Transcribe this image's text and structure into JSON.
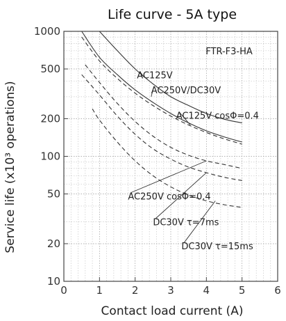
{
  "chart_data": {
    "type": "line",
    "title": "Life curve - 5A type",
    "model_label": "FTR-F3-HA",
    "xlabel": "Contact load current (A)",
    "ylabel": "Service life (x10³ operations)",
    "xlim": [
      0,
      6
    ],
    "ylim": [
      10,
      1000
    ],
    "yscale": "log",
    "grid": "dotted",
    "x_ticks": [
      0,
      1,
      2,
      3,
      4,
      5,
      6
    ],
    "x_tick_labels": [
      "0",
      "1",
      "2",
      "3",
      "4",
      "5",
      "6"
    ],
    "y_ticks": [
      10,
      20,
      50,
      100,
      200,
      500,
      1000
    ],
    "y_tick_labels": [
      "10",
      "20",
      "50",
      "100",
      "200",
      "500",
      "1000"
    ],
    "series": [
      {
        "name": "AC125V",
        "style": "solid",
        "points": [
          [
            1.0,
            1000
          ],
          [
            1.5,
            700
          ],
          [
            2.0,
            500
          ],
          [
            2.5,
            380
          ],
          [
            3.0,
            300
          ],
          [
            3.5,
            255
          ],
          [
            4.0,
            220
          ],
          [
            4.5,
            198
          ],
          [
            5.0,
            185
          ]
        ]
      },
      {
        "name": "AC250V/DC30V",
        "style": "solid",
        "points": [
          [
            0.5,
            1000
          ],
          [
            1.0,
            620
          ],
          [
            1.5,
            450
          ],
          [
            2.0,
            340
          ],
          [
            2.5,
            270
          ],
          [
            3.0,
            220
          ],
          [
            3.5,
            185
          ],
          [
            4.0,
            160
          ],
          [
            4.5,
            143
          ],
          [
            5.0,
            130
          ]
        ]
      },
      {
        "name": "AC125V cosΦ=0.4",
        "style": "dashed",
        "points": [
          [
            0.5,
            900
          ],
          [
            1.0,
            580
          ],
          [
            1.5,
            420
          ],
          [
            2.0,
            320
          ],
          [
            2.5,
            255
          ],
          [
            3.0,
            210
          ],
          [
            3.5,
            178
          ],
          [
            4.0,
            155
          ],
          [
            4.5,
            138
          ],
          [
            5.0,
            125
          ]
        ]
      },
      {
        "name": "AC250V cosΦ=0.4",
        "style": "dashed",
        "points": [
          [
            0.6,
            540
          ],
          [
            1.0,
            390
          ],
          [
            1.5,
            265
          ],
          [
            2.0,
            190
          ],
          [
            2.5,
            145
          ],
          [
            3.0,
            118
          ],
          [
            3.5,
            102
          ],
          [
            4.0,
            92
          ],
          [
            4.5,
            86
          ],
          [
            5.0,
            80
          ]
        ]
      },
      {
        "name": "DC30V τ=7ms",
        "style": "dashed",
        "points": [
          [
            0.5,
            450
          ],
          [
            1.0,
            310
          ],
          [
            1.5,
            210
          ],
          [
            2.0,
            150
          ],
          [
            2.5,
            115
          ],
          [
            3.0,
            95
          ],
          [
            3.5,
            82
          ],
          [
            4.0,
            74
          ],
          [
            4.5,
            68
          ],
          [
            5.0,
            64
          ]
        ]
      },
      {
        "name": "DC30V τ=15ms",
        "style": "dashed",
        "points": [
          [
            0.8,
            240
          ],
          [
            1.0,
            195
          ],
          [
            1.5,
            130
          ],
          [
            2.0,
            92
          ],
          [
            2.5,
            70
          ],
          [
            3.0,
            57
          ],
          [
            3.5,
            49
          ],
          [
            4.0,
            44
          ],
          [
            4.5,
            41
          ],
          [
            5.0,
            39
          ]
        ]
      }
    ],
    "annotations": [
      {
        "text": "AC125V",
        "series": "AC125V",
        "anchor": [
          2.05,
          420
        ],
        "leader_to": [
          2.25,
          430
        ]
      },
      {
        "text": "AC250V/DC30V",
        "series": "AC250V/DC30V",
        "anchor": [
          2.45,
          320
        ],
        "leader_to": [
          2.45,
          300
        ]
      },
      {
        "text": "AC125V cosΦ=0.4",
        "series": "AC125V cosΦ=0.4",
        "anchor": [
          3.15,
          200
        ],
        "leader_to": [
          3.55,
          178
        ]
      },
      {
        "text": "AC250V cosΦ=0.4",
        "series": "AC250V cosΦ=0.4",
        "anchor": [
          1.8,
          45
        ],
        "leader_to": [
          4.0,
          92
        ]
      },
      {
        "text": "DC30V τ=7ms",
        "series": "DC30V τ=7ms",
        "anchor": [
          2.5,
          28
        ],
        "leader_to": [
          4.0,
          74
        ]
      },
      {
        "text": "DC30V τ=15ms",
        "series": "DC30V τ=15ms",
        "anchor": [
          3.3,
          18
        ],
        "leader_to": [
          4.25,
          44
        ]
      }
    ]
  }
}
